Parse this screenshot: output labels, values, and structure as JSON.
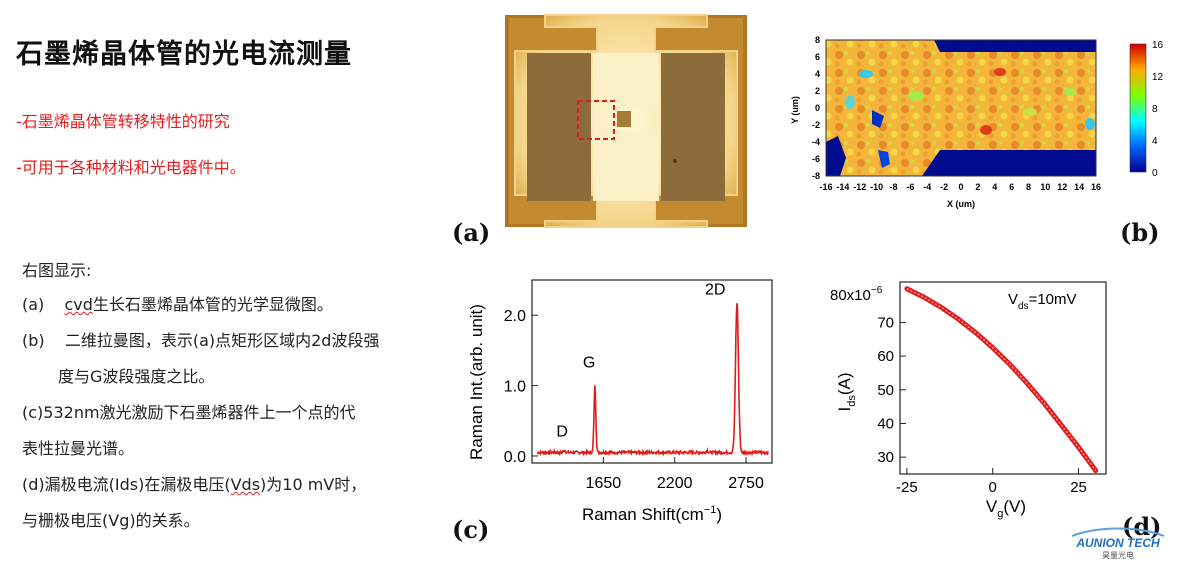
{
  "title": "石墨烯晶体管的光电流测量",
  "bullets": [
    "-石墨烯晶体管转移特性的研究",
    "-可用于各种材料和光电器件中。"
  ],
  "desc": {
    "intro": "右图显示:",
    "a_prefix": "(a)",
    "a_text_ul": "cvd",
    "a_text": "生长石墨烯晶体管的光学显微图。",
    "b_prefix": "(b)",
    "b_text1": "二维拉曼图，表示(a)点矩形区域内2d波段强",
    "b_text2": "度与G波段强度之比。",
    "c_text1": "(c)532nm激光激励下石墨烯器件上一个点的代",
    "c_text2": "表性拉曼光谱。",
    "d_text1a": "(d)漏极电流(Ids)在漏极电压(",
    "d_text1ul": "Vds",
    "d_text1b": ")为10 mV时，",
    "d_text2": "与栅极电压(Vg)的关系。"
  },
  "panel_labels": {
    "a": "(a)",
    "b": "(b)",
    "c": "(c)",
    "d": "(d)"
  },
  "colors": {
    "title": "#111111",
    "bullet": "#e41e1e",
    "trace": "#e31a1a"
  },
  "logo": {
    "text": "AUNION TECH",
    "sub": "昊量光电"
  },
  "chart_data": [
    {
      "type": "heatmap",
      "panel": "b",
      "xlabel": "X (um)",
      "ylabel": "Y (um)",
      "xlim": [
        -16,
        16
      ],
      "ylim": [
        -8,
        8
      ],
      "x_ticks": [
        "-16",
        "-14",
        "-12",
        "-10",
        "-8",
        "-6",
        "-4",
        "-2",
        "0",
        "2",
        "4",
        "6",
        "8",
        "10",
        "12",
        "14",
        "16"
      ],
      "y_ticks": [
        "8",
        "6",
        "4",
        "2",
        "0",
        "-2",
        "-4",
        "-6",
        "-8"
      ],
      "colorbar": {
        "min": 0,
        "max": 16,
        "ticks": [
          "16",
          "12",
          "8",
          "4",
          "0"
        ]
      }
    },
    {
      "type": "line",
      "panel": "c",
      "xlabel": "Raman Shift(cm",
      "xlabel_sup": "−1",
      "xlabel_end": ")",
      "ylabel": "Raman Int.(arb. unit)",
      "x_ticks": [
        "1650",
        "2200",
        "2750"
      ],
      "y_ticks": [
        "0.0",
        "1.0",
        "2.0"
      ],
      "xlim": [
        1100,
        2950
      ],
      "ylim": [
        -0.1,
        2.5
      ],
      "annotations": [
        "D",
        "G",
        "2D"
      ],
      "peaks": [
        {
          "label": "D",
          "x": 1350,
          "y": 0.08
        },
        {
          "label": "G",
          "x": 1585,
          "y": 1.0
        },
        {
          "label": "2D",
          "x": 2680,
          "y": 2.18
        }
      ]
    },
    {
      "type": "line",
      "panel": "d",
      "xlabel": "V",
      "xlabel_sub": "g",
      "xlabel_end": "(V)",
      "ylabel": "I",
      "ylabel_sub": "ds",
      "ylabel_end": "(A)",
      "y_multiplier": "80x10",
      "y_multiplier_sup": "−6",
      "annotation_main": "V",
      "annotation_sub": "ds",
      "annotation_end": "=10mV",
      "x_ticks": [
        "-25",
        "0",
        "25"
      ],
      "y_ticks": [
        "70",
        "60",
        "50",
        "40",
        "30"
      ],
      "xlim": [
        -27,
        33
      ],
      "ylim": [
        25,
        82
      ],
      "x": [
        -25,
        -20,
        -15,
        -10,
        -5,
        0,
        5,
        10,
        15,
        20,
        25,
        30
      ],
      "y": [
        80,
        77.5,
        74.5,
        71,
        67,
        62.5,
        57.5,
        52,
        46,
        39.5,
        33,
        26
      ]
    }
  ]
}
